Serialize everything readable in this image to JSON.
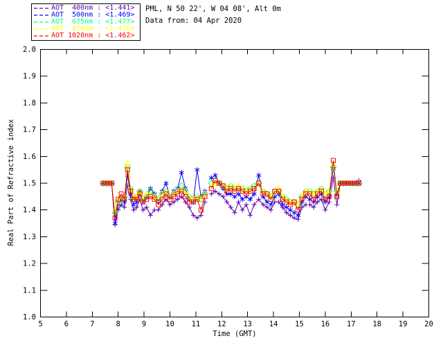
{
  "header": {
    "line1": "PML, N 50 22', W 04 08', Alt 0m",
    "line2": "Data from: 04 Apr 2020"
  },
  "legend": {
    "items": [
      {
        "label": "AOT  400nm : <1.441>",
        "color": "#5B00A9",
        "marker": "plus"
      },
      {
        "label": "AOT  500nm : <1.469>",
        "color": "#0000FF",
        "marker": "asterisk"
      },
      {
        "label": "AOT  675nm : <1.477>",
        "color": "#00FF88",
        "marker": "diamond"
      },
      {
        "label": "AOT  870nm : <1.476>",
        "color": "#FFFF00",
        "marker": "triangle"
      },
      {
        "label": "AOT 1020nm : <1.462>",
        "color": "#FF0000",
        "marker": "square"
      }
    ]
  },
  "chart_data": {
    "type": "line",
    "title": "",
    "xlabel": "Time (GMT)",
    "ylabel": "Real Part of Refractive index",
    "xlim": [
      5,
      20
    ],
    "ylim": [
      1.0,
      2.0
    ],
    "xticks": [
      5,
      6,
      7,
      8,
      9,
      10,
      11,
      12,
      13,
      14,
      15,
      16,
      17,
      18,
      19,
      20
    ],
    "yticks": [
      1.0,
      1.1,
      1.2,
      1.3,
      1.4,
      1.5,
      1.6,
      1.7,
      1.8,
      1.9,
      2.0
    ],
    "grid": false,
    "legend_position": "top-left-outside",
    "axis_color": "#000000",
    "x": [
      7.42,
      7.53,
      7.64,
      7.75,
      7.88,
      8.0,
      8.12,
      8.24,
      8.36,
      8.48,
      8.6,
      8.72,
      8.84,
      8.96,
      9.1,
      9.25,
      9.4,
      9.55,
      9.7,
      9.85,
      10.0,
      10.15,
      10.3,
      10.45,
      10.6,
      10.75,
      10.9,
      11.05,
      11.2,
      11.35,
      11.47,
      11.6,
      11.75,
      11.9,
      12.05,
      12.2,
      12.35,
      12.5,
      12.65,
      12.8,
      12.95,
      13.1,
      13.25,
      13.43,
      13.6,
      13.75,
      13.9,
      14.05,
      14.2,
      14.35,
      14.5,
      14.65,
      14.8,
      14.95,
      15.1,
      15.25,
      15.4,
      15.55,
      15.7,
      15.85,
      16.0,
      16.15,
      16.31,
      16.45,
      16.58,
      16.7,
      16.82,
      16.94,
      17.06,
      17.18,
      17.3
    ],
    "series": [
      {
        "name": "AOT 400nm",
        "mean": "<1.441>",
        "color": "#5B00A9",
        "marker": "plus",
        "values": [
          1.5,
          1.5,
          1.5,
          1.5,
          1.345,
          1.4,
          1.42,
          1.41,
          1.49,
          1.44,
          1.4,
          1.41,
          1.44,
          1.4,
          1.41,
          1.38,
          1.4,
          1.4,
          1.42,
          1.44,
          1.42,
          1.43,
          1.44,
          1.45,
          1.43,
          1.41,
          1.38,
          1.37,
          1.38,
          1.43,
          null,
          1.46,
          1.47,
          1.46,
          1.45,
          1.43,
          1.41,
          1.39,
          1.43,
          1.4,
          1.42,
          1.38,
          1.42,
          1.44,
          1.42,
          1.41,
          1.4,
          1.43,
          1.43,
          1.41,
          1.39,
          1.38,
          1.37,
          1.365,
          1.41,
          1.42,
          1.42,
          1.41,
          1.43,
          1.44,
          1.4,
          1.43,
          1.52,
          1.42,
          1.5,
          1.5,
          1.5,
          1.5,
          1.5,
          1.5,
          1.51
        ]
      },
      {
        "name": "AOT 500nm",
        "mean": "<1.469>",
        "color": "#0000FF",
        "marker": "asterisk",
        "values": [
          1.5,
          1.5,
          1.5,
          1.5,
          1.35,
          1.42,
          1.44,
          1.43,
          1.53,
          1.46,
          1.42,
          1.43,
          1.47,
          1.43,
          1.45,
          1.48,
          1.46,
          1.43,
          1.47,
          1.5,
          1.45,
          1.47,
          1.48,
          1.54,
          1.48,
          1.44,
          1.43,
          1.55,
          1.45,
          1.47,
          null,
          1.52,
          1.53,
          1.5,
          1.48,
          1.46,
          1.46,
          1.45,
          1.46,
          1.44,
          1.45,
          1.44,
          1.46,
          1.53,
          1.45,
          1.43,
          1.42,
          1.45,
          1.46,
          1.42,
          1.41,
          1.4,
          1.39,
          1.38,
          1.43,
          1.45,
          1.44,
          1.43,
          1.45,
          1.46,
          1.43,
          1.45,
          1.555,
          1.46,
          1.5,
          1.5,
          1.5,
          1.5,
          1.5,
          1.5,
          1.5
        ]
      },
      {
        "name": "AOT 675nm",
        "mean": "<1.477>",
        "color": "#00FF88",
        "marker": "diamond",
        "values": [
          1.5,
          1.5,
          1.5,
          1.5,
          1.39,
          1.43,
          1.44,
          1.45,
          1.56,
          1.48,
          1.44,
          1.45,
          1.47,
          1.44,
          1.45,
          1.47,
          1.45,
          1.44,
          1.46,
          1.47,
          1.45,
          1.46,
          1.47,
          1.49,
          1.47,
          1.45,
          1.44,
          1.45,
          1.44,
          1.46,
          null,
          1.5,
          1.51,
          1.5,
          1.49,
          1.48,
          1.49,
          1.48,
          1.48,
          1.48,
          1.47,
          1.48,
          1.49,
          1.5,
          1.47,
          1.46,
          1.45,
          1.47,
          1.47,
          1.45,
          1.44,
          1.43,
          1.43,
          1.42,
          1.45,
          1.47,
          1.47,
          1.46,
          1.47,
          1.48,
          1.46,
          1.47,
          1.56,
          1.47,
          1.5,
          1.5,
          1.5,
          1.5,
          1.5,
          1.5,
          1.5
        ]
      },
      {
        "name": "AOT 870nm",
        "mean": "<1.476>",
        "color": "#FFFF00",
        "marker": "triangle",
        "values": [
          1.5,
          1.5,
          1.5,
          1.5,
          1.4,
          1.43,
          1.45,
          1.45,
          1.575,
          1.48,
          1.45,
          1.45,
          1.47,
          1.44,
          1.46,
          1.46,
          1.45,
          1.44,
          1.46,
          1.47,
          1.45,
          1.46,
          1.47,
          1.48,
          1.47,
          1.45,
          1.44,
          1.45,
          1.44,
          1.46,
          null,
          1.49,
          1.5,
          1.5,
          1.49,
          1.48,
          1.49,
          1.48,
          1.49,
          1.48,
          1.47,
          1.48,
          1.48,
          1.5,
          1.47,
          1.46,
          1.45,
          1.47,
          1.48,
          1.45,
          1.44,
          1.43,
          1.43,
          1.42,
          1.45,
          1.47,
          1.47,
          1.46,
          1.47,
          1.48,
          1.46,
          1.47,
          1.57,
          1.47,
          1.5,
          1.5,
          1.5,
          1.5,
          1.5,
          1.5,
          1.5
        ]
      },
      {
        "name": "AOT 1020nm",
        "mean": "<1.462>",
        "color": "#FF0000",
        "marker": "square",
        "values": [
          1.5,
          1.5,
          1.5,
          1.5,
          1.37,
          1.44,
          1.46,
          1.44,
          1.55,
          1.47,
          1.44,
          1.44,
          1.46,
          1.43,
          1.44,
          1.45,
          1.44,
          1.42,
          1.44,
          1.46,
          1.44,
          1.45,
          1.46,
          1.47,
          1.45,
          1.43,
          1.43,
          1.44,
          1.4,
          1.45,
          null,
          1.48,
          1.51,
          1.5,
          1.49,
          1.47,
          1.48,
          1.47,
          1.48,
          1.47,
          1.46,
          1.47,
          1.48,
          1.5,
          1.46,
          1.46,
          1.44,
          1.47,
          1.47,
          1.44,
          1.43,
          1.42,
          1.43,
          1.4,
          1.44,
          1.46,
          1.46,
          1.44,
          1.46,
          1.47,
          1.44,
          1.45,
          1.585,
          1.45,
          1.5,
          1.5,
          1.5,
          1.5,
          1.5,
          1.5,
          1.5
        ]
      }
    ]
  }
}
